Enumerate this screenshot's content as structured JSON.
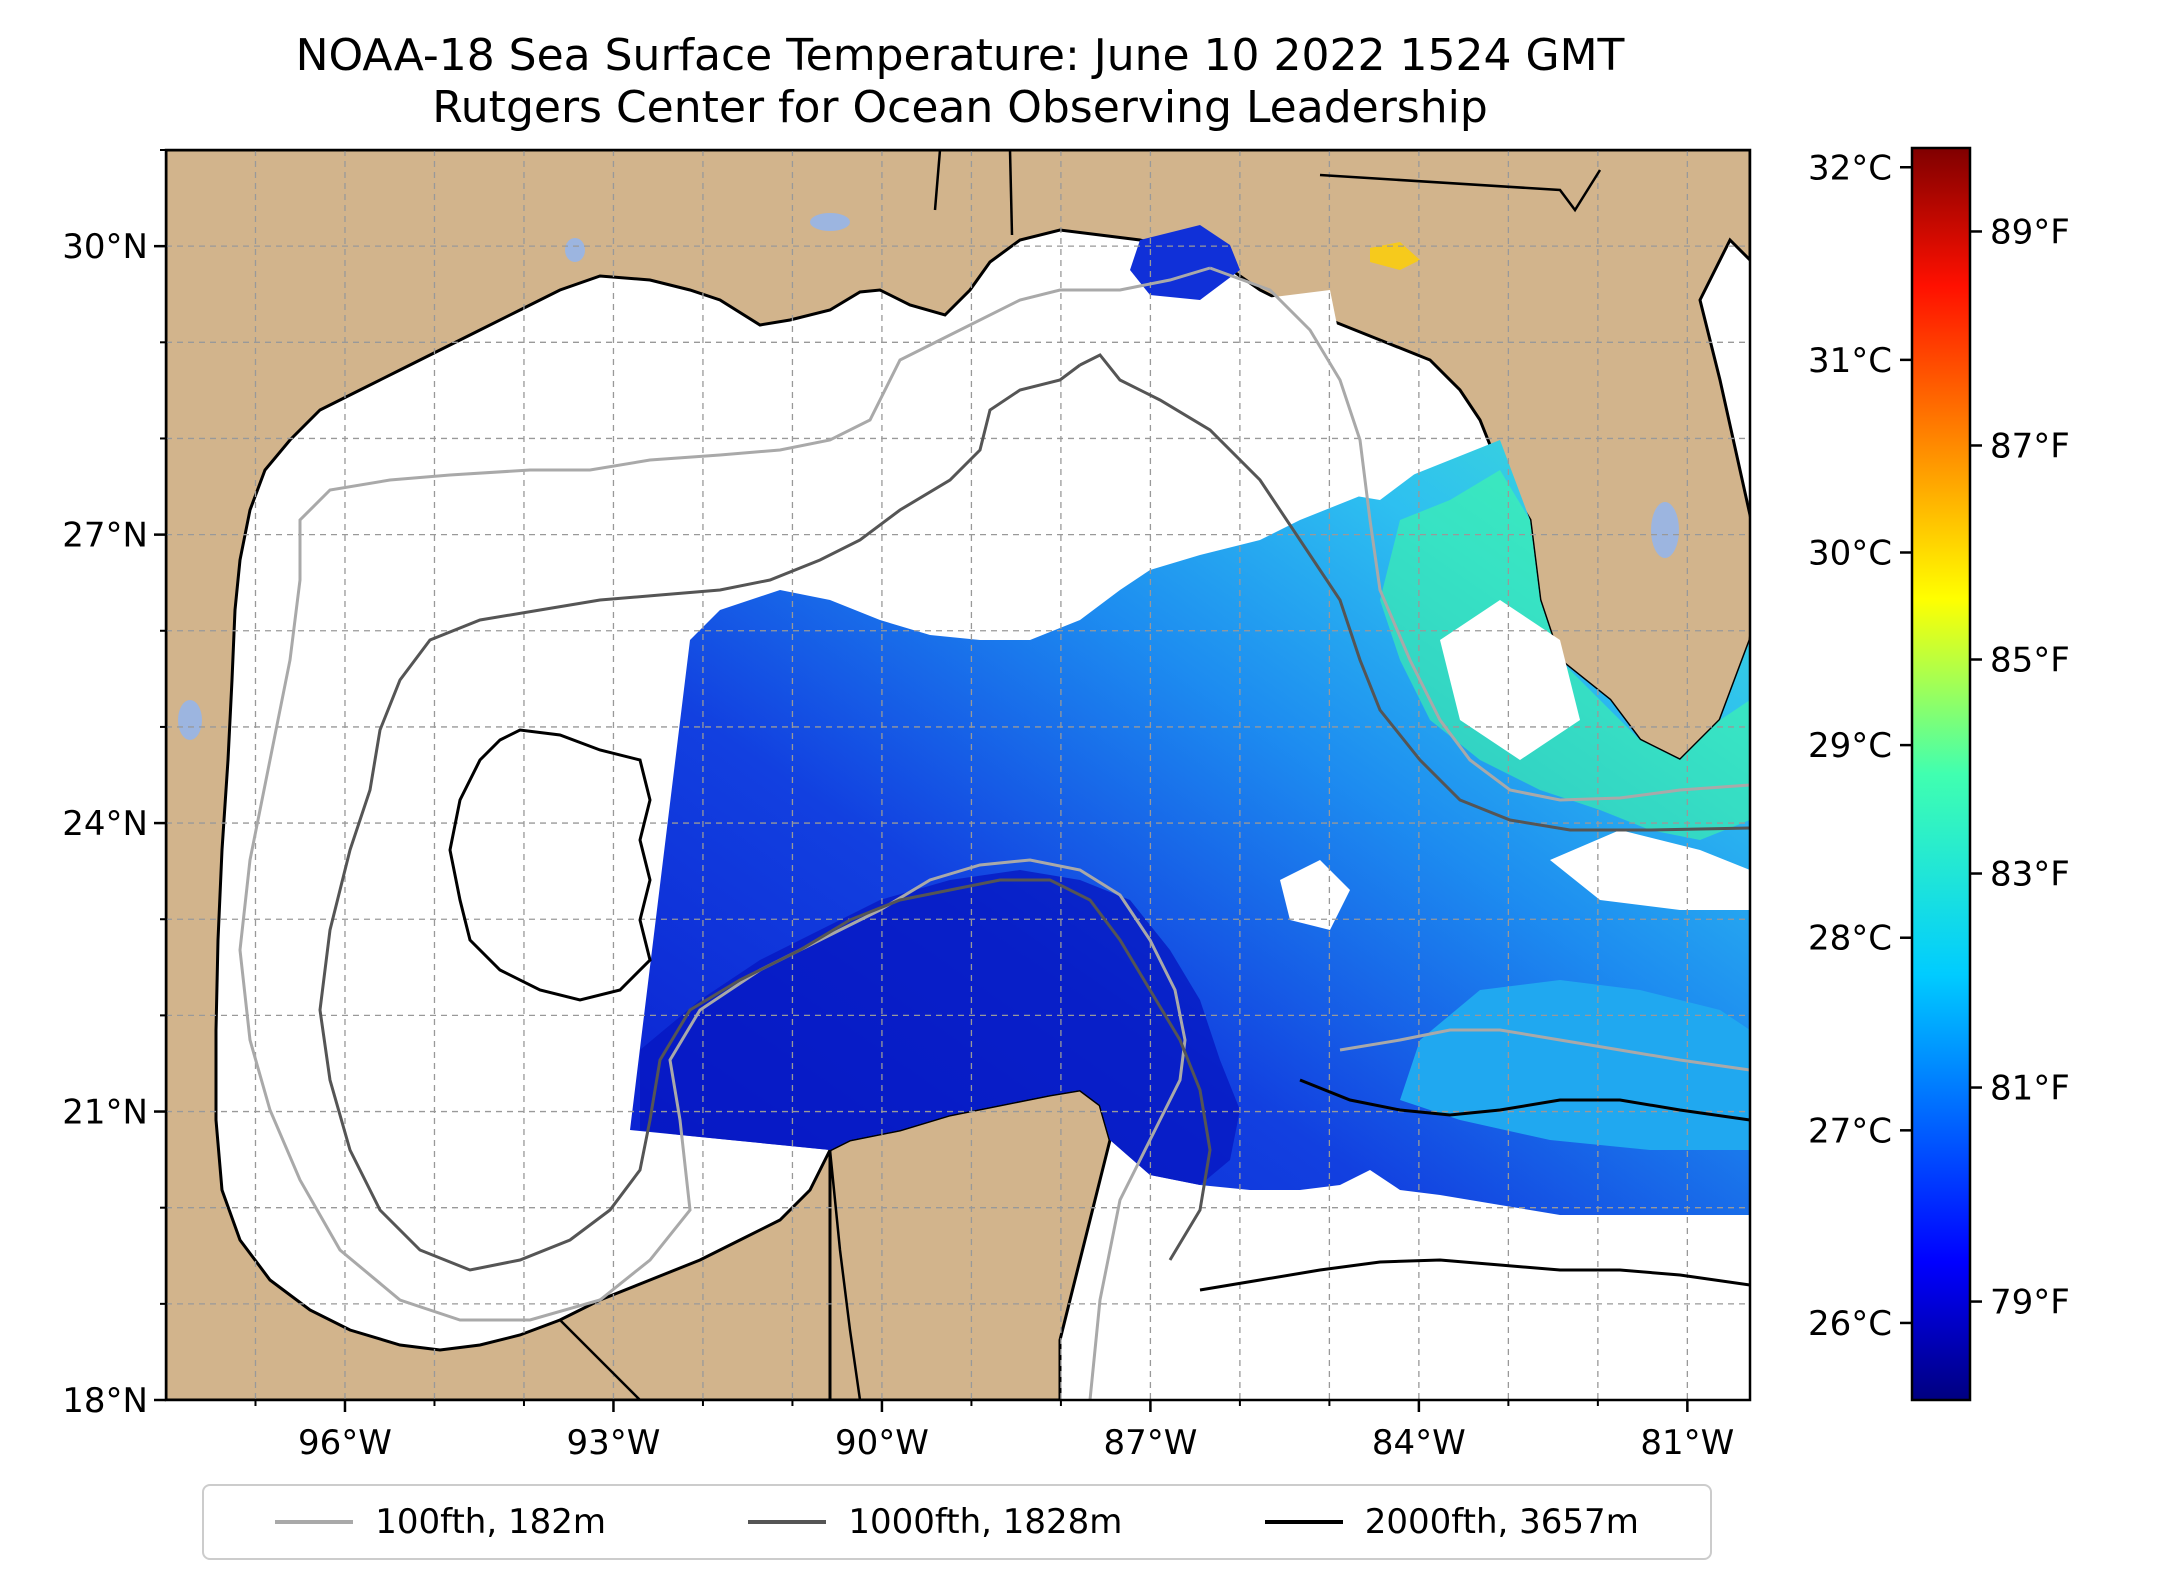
{
  "title": "NOAA-18 Sea Surface Temperature: June 10 2022 1524 GMT",
  "subtitle": "Rutgers Center for Ocean Observing Leadership",
  "map": {
    "lon_range": [
      -98,
      -80.3
    ],
    "lat_range": [
      18,
      31
    ],
    "lat_ticks": [
      "30°N",
      "27°N",
      "24°N",
      "21°N",
      "18°N"
    ],
    "lat_tick_values": [
      30,
      27,
      24,
      21,
      18
    ],
    "lon_ticks": [
      "96°W",
      "93°W",
      "90°W",
      "87°W",
      "84°W",
      "81°W"
    ],
    "lon_tick_values": [
      -96,
      -93,
      -90,
      -87,
      -84,
      -81
    ],
    "grid": true,
    "land_color": "#d2b48c",
    "lake_color": "#9cb5e0",
    "no_data_color": "#ffffff"
  },
  "colorbar": {
    "celsius_ticks": [
      "32°C",
      "31°C",
      "30°C",
      "29°C",
      "28°C",
      "27°C",
      "26°C"
    ],
    "celsius_values": [
      32,
      31,
      30,
      29,
      28,
      27,
      26
    ],
    "fahrenheit_ticks": [
      "89°F",
      "87°F",
      "85°F",
      "83°F",
      "81°F",
      "79°F"
    ],
    "fahrenheit_values": [
      89,
      87,
      85,
      83,
      81,
      79
    ],
    "range_c": [
      25.6,
      32.1
    ],
    "colormap": "jet"
  },
  "legend": {
    "items": [
      {
        "label": "100fth, 182m",
        "color": "#a9a9a9"
      },
      {
        "label": "1000fth, 1828m",
        "color": "#555555"
      },
      {
        "label": "2000fth, 3657m",
        "color": "#000000"
      }
    ]
  }
}
